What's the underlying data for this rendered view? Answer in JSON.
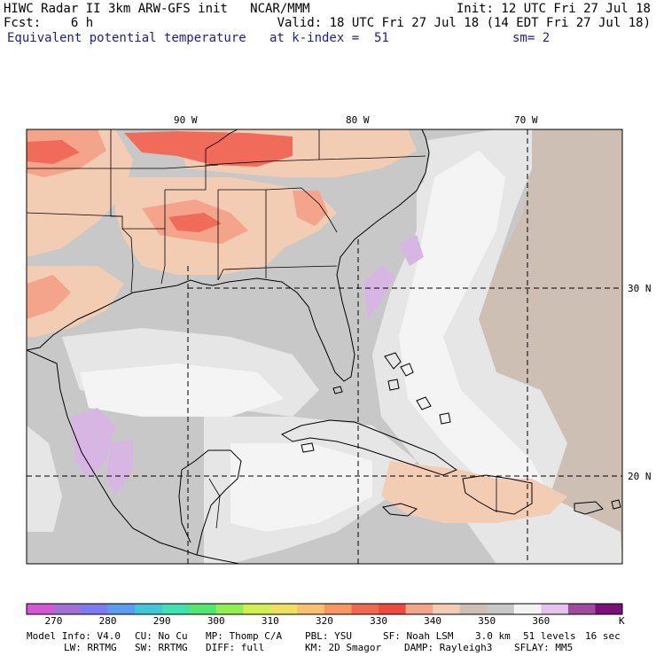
{
  "header": {
    "line1_left": "HIWC Radar II 3km ARW-GFS init   NCAR/MMM",
    "line1_right": "Init: 12 UTC Fri 27 Jul 18",
    "line2_left": "Fcst:    6 h",
    "line2_right": "Valid: 18 UTC Fri 27 Jul 18 (14 EDT Fri 27 Jul 18)",
    "line3_left": "Equivalent potential temperature",
    "line3_mid": "at k-index =  51",
    "line3_right": "sm= 2"
  },
  "map": {
    "lon_labels": [
      "90 W",
      "80 W",
      "70 W"
    ],
    "lat_labels": [
      "30 N",
      "20 N"
    ],
    "colors": {
      "ocean_gray": "#c8c8c8",
      "light_gray": "#e6e6e6",
      "white": "#f4f4f4",
      "tan": "#cdbfb3",
      "peach": "#f2cdb3",
      "salmon": "#f4a48a",
      "red": "#f06b5a",
      "lavender": "#d8b6e4"
    }
  },
  "colorbar": {
    "colors": [
      "#d456d4",
      "#a070d4",
      "#7c7cf0",
      "#5a9cf0",
      "#40c8d8",
      "#40e0b0",
      "#50e870",
      "#90ee50",
      "#d0f050",
      "#f0e060",
      "#f8c070",
      "#f89860",
      "#f06850",
      "#f04a40",
      "#f4a48a",
      "#f2cdb3",
      "#cdbfb3",
      "#c8c8c8",
      "#f4f4f4",
      "#e4c4ec",
      "#a04aa0",
      "#7a107a"
    ],
    "ticks": [
      "270",
      "280",
      "290",
      "300",
      "310",
      "320",
      "330",
      "340",
      "350",
      "360"
    ],
    "unit": "K"
  },
  "footer": {
    "line1": [
      "Model Info: V4.0",
      "CU: No Cu",
      "MP: Thomp C/A",
      "PBL: YSU",
      "SF: Noah LSM",
      "3.0 km",
      "51 levels",
      "16 sec"
    ],
    "line2": [
      "LW: RRTMG",
      "SW: RRTMG",
      "DIFF: full",
      "KM: 2D Smagor",
      "DAMP: Rayleigh3",
      "SFLAY: MM5"
    ]
  }
}
